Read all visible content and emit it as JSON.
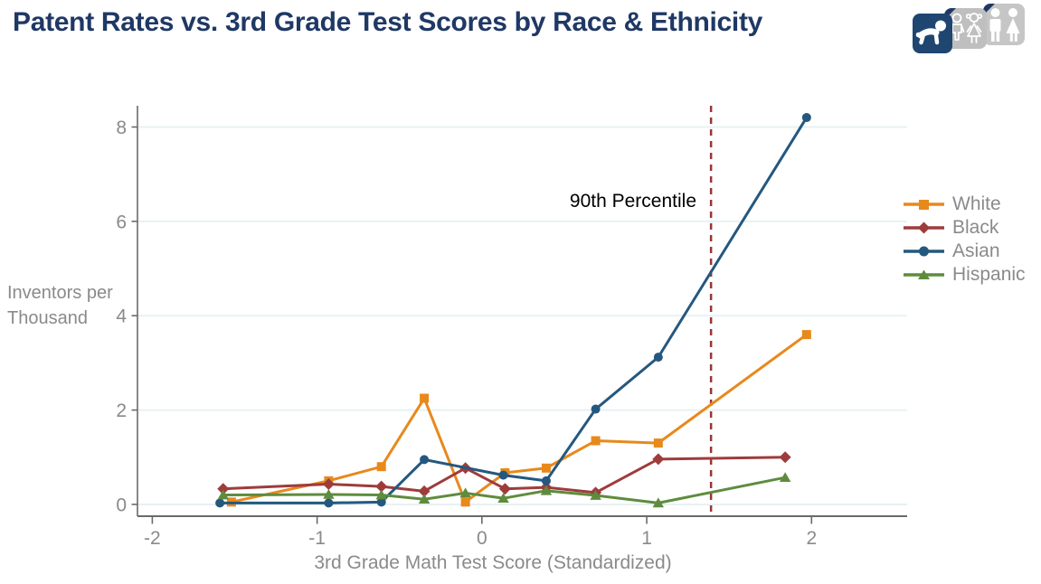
{
  "header": {
    "title": "Patent Rates vs. 3rd Grade Test Scores by Race & Ethnicity",
    "icon_cards": [
      {
        "name": "baby-card",
        "theme": "navy"
      },
      {
        "name": "children-card",
        "theme": "gray"
      },
      {
        "name": "adults-card",
        "theme": "gray"
      }
    ]
  },
  "colors": {
    "title": "#1F3864",
    "axis_line": "#6A6A6A",
    "tick_text": "#8A8A8A",
    "gridline": "#E8F1F3",
    "annotation_line": "#953735",
    "card_navy": "#1F4571",
    "card_gray": "#C2C2C2"
  },
  "chart_data": {
    "type": "line",
    "title": "Patent Rates vs. 3rd Grade Test Scores by Race & Ethnicity",
    "xlabel": "3rd Grade Math Test Score (Standardized)",
    "ylabel": "Inventors per Thousand",
    "ylabel_lines": [
      "Inventors per",
      "Thousand"
    ],
    "xlim": [
      -2.09,
      2.58
    ],
    "ylim": [
      -0.25,
      8.45
    ],
    "xticks": [
      -2,
      -1,
      0,
      1,
      2
    ],
    "yticks": [
      0,
      2,
      4,
      6,
      8
    ],
    "grid": "horizontal",
    "legend_position": "right",
    "annotation": {
      "label": "90th Percentile",
      "x": 1.39,
      "style": "dashed",
      "color": "#953735"
    },
    "series": [
      {
        "name": "White",
        "color": "#E8891C",
        "marker": "square",
        "points": [
          [
            -1.52,
            0.05
          ],
          [
            -0.93,
            0.5
          ],
          [
            -0.61,
            0.8
          ],
          [
            -0.35,
            2.25
          ],
          [
            -0.1,
            0.05
          ],
          [
            0.14,
            0.67
          ],
          [
            0.39,
            0.77
          ],
          [
            0.69,
            1.35
          ],
          [
            1.07,
            1.3
          ],
          [
            1.97,
            3.6
          ]
        ]
      },
      {
        "name": "Black",
        "color": "#9E3C3C",
        "marker": "diamond",
        "points": [
          [
            -1.57,
            0.33
          ],
          [
            -0.93,
            0.43
          ],
          [
            -0.61,
            0.38
          ],
          [
            -0.35,
            0.28
          ],
          [
            -0.1,
            0.77
          ],
          [
            0.14,
            0.33
          ],
          [
            0.39,
            0.36
          ],
          [
            0.69,
            0.25
          ],
          [
            1.07,
            0.96
          ],
          [
            1.84,
            1.0
          ]
        ]
      },
      {
        "name": "Asian",
        "color": "#24587F",
        "marker": "circle",
        "points": [
          [
            -1.59,
            0.03
          ],
          [
            -0.93,
            0.03
          ],
          [
            -0.61,
            0.05
          ],
          [
            -0.35,
            0.95
          ],
          [
            0.13,
            0.62
          ],
          [
            0.39,
            0.5
          ],
          [
            0.69,
            2.02
          ],
          [
            1.07,
            3.12
          ],
          [
            1.97,
            8.2
          ]
        ]
      },
      {
        "name": "Hispanic",
        "color": "#5E8C3D",
        "marker": "triangle",
        "points": [
          [
            -1.57,
            0.2
          ],
          [
            -0.93,
            0.21
          ],
          [
            -0.61,
            0.2
          ],
          [
            -0.35,
            0.11
          ],
          [
            -0.1,
            0.24
          ],
          [
            0.13,
            0.13
          ],
          [
            0.39,
            0.29
          ],
          [
            0.69,
            0.19
          ],
          [
            1.07,
            0.03
          ],
          [
            1.84,
            0.57
          ]
        ]
      }
    ]
  }
}
